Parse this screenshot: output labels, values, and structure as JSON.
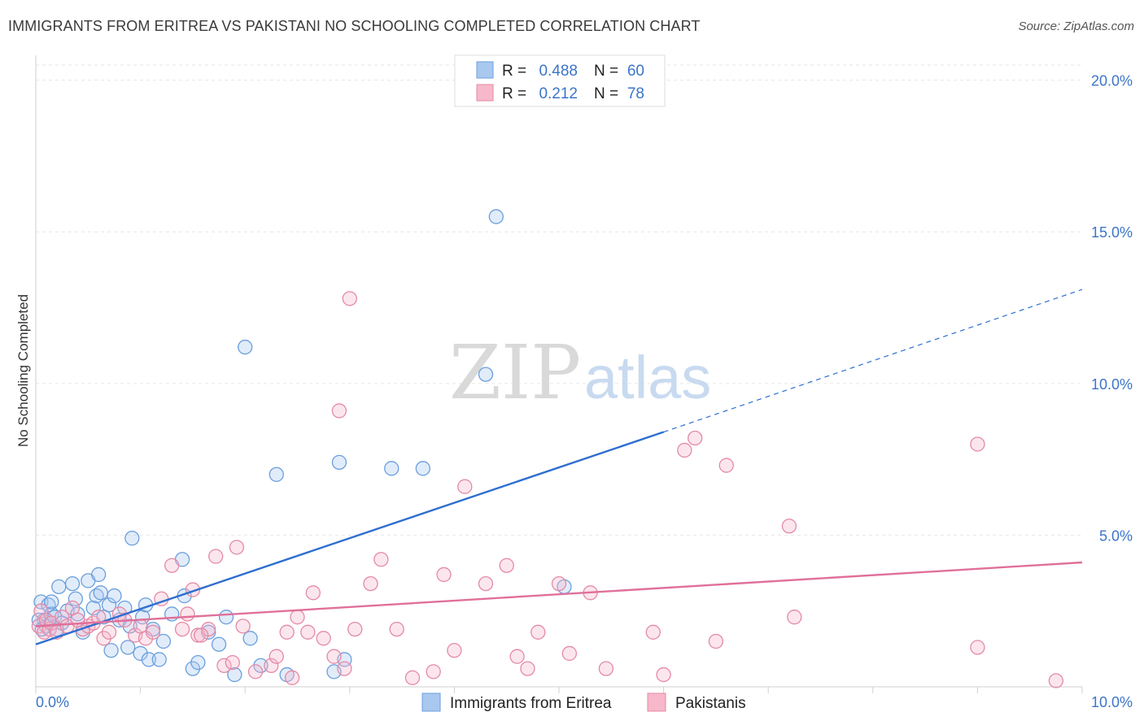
{
  "title": "IMMIGRANTS FROM ERITREA VS PAKISTANI NO SCHOOLING COMPLETED CORRELATION CHART",
  "source": "Source: ZipAtlas.com",
  "watermark": {
    "zip": "ZIP",
    "atlas": "atlas"
  },
  "legend_top": {
    "rows": [
      {
        "r_label": "R =",
        "r_value": "0.488",
        "n_label": "N =",
        "n_value": "60",
        "color": "#a9c8f0",
        "stroke": "#6a9fdc"
      },
      {
        "r_label": "R =",
        "r_value": "0.212",
        "n_label": "N =",
        "n_value": "78",
        "color": "#f6b8ca",
        "stroke": "#e48aa6"
      }
    ]
  },
  "legend_bottom": [
    {
      "label": "Immigrants from Eritrea",
      "color": "#a9c8f0",
      "stroke": "#6a9fdc"
    },
    {
      "label": "Pakistanis",
      "color": "#f6b8ca",
      "stroke": "#e48aa6"
    }
  ],
  "chart_data": {
    "type": "scatter",
    "title": "IMMIGRANTS FROM ERITREA VS PAKISTANI NO SCHOOLING COMPLETED CORRELATION CHART",
    "xlabel": "",
    "ylabel": "No Schooling Completed",
    "xlim": [
      0,
      10
    ],
    "ylim": [
      0,
      20.5
    ],
    "x_tick_labels": [
      {
        "value": 0,
        "label": "0.0%"
      },
      {
        "value": 10,
        "label": "10.0%"
      }
    ],
    "y_tick_labels": [
      {
        "value": 5,
        "label": "5.0%"
      },
      {
        "value": 10,
        "label": "10.0%"
      },
      {
        "value": 15,
        "label": "15.0%"
      },
      {
        "value": 20,
        "label": "20.0%"
      }
    ],
    "grid": true,
    "series": [
      {
        "name": "Immigrants from Eritrea",
        "color": "#6a9fdc",
        "trend": {
          "x0": 0,
          "y0": 1.4,
          "x1": 6.0,
          "y1": 8.4,
          "dashed_to_x": 10,
          "dashed_to_y": 13.1
        },
        "points": [
          [
            0.05,
            2.8
          ],
          [
            0.08,
            2.2
          ],
          [
            0.1,
            2.0
          ],
          [
            0.12,
            2.7
          ],
          [
            0.15,
            2.4
          ],
          [
            0.18,
            2.3
          ],
          [
            0.2,
            1.9
          ],
          [
            0.22,
            3.3
          ],
          [
            0.25,
            2.1
          ],
          [
            0.3,
            2.5
          ],
          [
            0.35,
            3.4
          ],
          [
            0.38,
            2.9
          ],
          [
            0.4,
            2.4
          ],
          [
            0.45,
            1.8
          ],
          [
            0.5,
            3.5
          ],
          [
            0.55,
            2.6
          ],
          [
            0.58,
            3.0
          ],
          [
            0.6,
            3.7
          ],
          [
            0.62,
            3.1
          ],
          [
            0.65,
            2.3
          ],
          [
            0.7,
            2.7
          ],
          [
            0.72,
            1.2
          ],
          [
            0.75,
            3.0
          ],
          [
            0.8,
            2.2
          ],
          [
            0.85,
            2.6
          ],
          [
            0.88,
            1.3
          ],
          [
            0.9,
            2.0
          ],
          [
            0.92,
            4.9
          ],
          [
            1.0,
            1.1
          ],
          [
            1.02,
            2.3
          ],
          [
            1.05,
            2.7
          ],
          [
            1.08,
            0.9
          ],
          [
            1.12,
            1.9
          ],
          [
            1.18,
            0.9
          ],
          [
            1.22,
            1.5
          ],
          [
            1.3,
            2.4
          ],
          [
            1.4,
            4.2
          ],
          [
            1.42,
            3.0
          ],
          [
            1.5,
            0.6
          ],
          [
            1.55,
            0.8
          ],
          [
            1.65,
            1.8
          ],
          [
            1.75,
            1.4
          ],
          [
            1.82,
            2.3
          ],
          [
            1.9,
            0.4
          ],
          [
            2.0,
            11.2
          ],
          [
            2.05,
            1.6
          ],
          [
            2.15,
            0.7
          ],
          [
            2.3,
            7.0
          ],
          [
            2.4,
            0.4
          ],
          [
            2.85,
            0.5
          ],
          [
            2.9,
            7.4
          ],
          [
            2.95,
            0.9
          ],
          [
            3.4,
            7.2
          ],
          [
            3.7,
            7.2
          ],
          [
            4.3,
            10.3
          ],
          [
            4.4,
            15.5
          ],
          [
            5.05,
            3.3
          ],
          [
            0.03,
            2.2
          ],
          [
            0.06,
            1.9
          ],
          [
            0.15,
            2.8
          ]
        ]
      },
      {
        "name": "Pakistanis",
        "color": "#e48aa6",
        "trend": {
          "x0": 0,
          "y0": 2.0,
          "x1": 10,
          "y1": 4.1
        },
        "points": [
          [
            0.03,
            2.0
          ],
          [
            0.05,
            2.5
          ],
          [
            0.08,
            1.8
          ],
          [
            0.1,
            2.2
          ],
          [
            0.13,
            1.9
          ],
          [
            0.15,
            2.1
          ],
          [
            0.2,
            1.8
          ],
          [
            0.25,
            2.3
          ],
          [
            0.3,
            2.0
          ],
          [
            0.35,
            2.6
          ],
          [
            0.45,
            1.9
          ],
          [
            0.5,
            2.0
          ],
          [
            0.55,
            2.1
          ],
          [
            0.6,
            2.3
          ],
          [
            0.65,
            1.6
          ],
          [
            0.7,
            1.8
          ],
          [
            0.8,
            2.4
          ],
          [
            0.85,
            2.2
          ],
          [
            0.95,
            1.7
          ],
          [
            1.0,
            2.0
          ],
          [
            1.05,
            1.6
          ],
          [
            1.12,
            1.8
          ],
          [
            1.2,
            2.9
          ],
          [
            1.3,
            4.0
          ],
          [
            1.4,
            1.9
          ],
          [
            1.45,
            2.4
          ],
          [
            1.5,
            3.2
          ],
          [
            1.55,
            1.7
          ],
          [
            1.65,
            1.9
          ],
          [
            1.72,
            4.3
          ],
          [
            1.8,
            0.7
          ],
          [
            1.88,
            0.8
          ],
          [
            1.92,
            4.6
          ],
          [
            1.98,
            2.0
          ],
          [
            2.1,
            0.5
          ],
          [
            2.25,
            0.7
          ],
          [
            2.3,
            1.0
          ],
          [
            2.4,
            1.8
          ],
          [
            2.45,
            0.3
          ],
          [
            2.5,
            2.3
          ],
          [
            2.6,
            1.8
          ],
          [
            2.65,
            3.1
          ],
          [
            2.75,
            1.6
          ],
          [
            2.85,
            1.0
          ],
          [
            2.9,
            9.1
          ],
          [
            2.95,
            0.6
          ],
          [
            3.0,
            12.8
          ],
          [
            3.05,
            1.9
          ],
          [
            3.2,
            3.4
          ],
          [
            3.3,
            4.2
          ],
          [
            3.45,
            1.9
          ],
          [
            3.6,
            0.3
          ],
          [
            3.8,
            0.5
          ],
          [
            3.9,
            3.7
          ],
          [
            4.0,
            1.2
          ],
          [
            4.1,
            6.6
          ],
          [
            4.3,
            3.4
          ],
          [
            4.5,
            4.0
          ],
          [
            4.6,
            1.0
          ],
          [
            4.7,
            0.6
          ],
          [
            4.8,
            1.8
          ],
          [
            5.0,
            3.4
          ],
          [
            5.1,
            1.1
          ],
          [
            5.3,
            3.1
          ],
          [
            5.45,
            0.6
          ],
          [
            5.9,
            1.8
          ],
          [
            6.0,
            0.4
          ],
          [
            6.2,
            7.8
          ],
          [
            6.3,
            8.2
          ],
          [
            6.5,
            1.5
          ],
          [
            6.6,
            7.3
          ],
          [
            7.2,
            5.3
          ],
          [
            7.25,
            2.3
          ],
          [
            9.0,
            8.0
          ],
          [
            9.0,
            1.3
          ],
          [
            9.75,
            0.2
          ],
          [
            0.4,
            2.2
          ],
          [
            1.58,
            1.7
          ]
        ]
      }
    ]
  }
}
